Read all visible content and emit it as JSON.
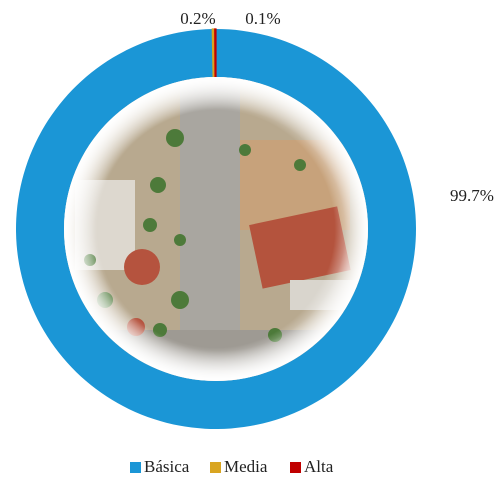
{
  "chart_data": {
    "type": "donut",
    "categories": [
      "Básica",
      "Media",
      "Alta"
    ],
    "values": [
      99.7,
      0.2,
      0.1
    ],
    "value_labels": [
      "99.7%",
      "0.2%",
      "0.1%"
    ],
    "colors": [
      "#1b96d6",
      "#d9a521",
      "#c00000"
    ],
    "legend": "bottom"
  }
}
